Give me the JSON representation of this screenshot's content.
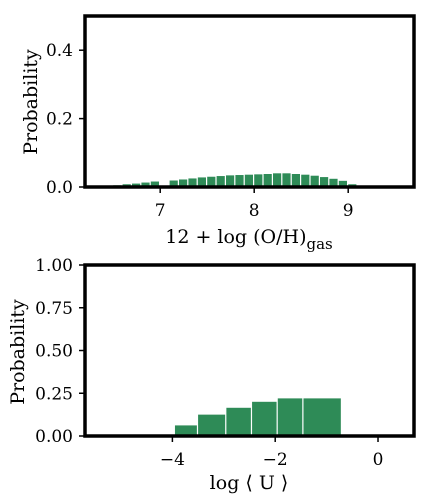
{
  "chart_data": [
    {
      "type": "bar",
      "panel": "top",
      "xlabel": "12 + log (O/H)",
      "xlabel_sub": "gas",
      "ylabel": "Probability",
      "xlim": [
        6.2,
        9.7
      ],
      "ylim": [
        0.0,
        0.5
      ],
      "xticks": [
        7,
        8,
        9
      ],
      "yticks": [
        0.0,
        0.2,
        0.4
      ],
      "ytick_labels": [
        "0.0",
        "0.2",
        "0.4"
      ],
      "bin_edges": [
        6.5,
        6.6,
        6.7,
        6.8,
        6.9,
        7.0,
        7.1,
        7.2,
        7.3,
        7.4,
        7.5,
        7.6,
        7.7,
        7.8,
        7.9,
        8.0,
        8.1,
        8.2,
        8.3,
        8.4,
        8.5,
        8.6,
        8.7,
        8.8,
        8.9,
        9.0,
        9.1
      ],
      "values": [
        0.005,
        0.008,
        0.01,
        0.013,
        0.016,
        0.0,
        0.019,
        0.022,
        0.025,
        0.028,
        0.03,
        0.032,
        0.034,
        0.035,
        0.036,
        0.037,
        0.038,
        0.04,
        0.04,
        0.038,
        0.036,
        0.033,
        0.029,
        0.024,
        0.018,
        0.008
      ],
      "bar_color": "#2e8b57"
    },
    {
      "type": "bar",
      "panel": "bottom",
      "xlabel": "log ⟨ U ⟩",
      "ylabel": "Probability",
      "xlim": [
        -5.7,
        0.7
      ],
      "ylim": [
        0.0,
        1.0
      ],
      "xticks": [
        -4,
        -2,
        0
      ],
      "xtick_labels": [
        "−4",
        "−2",
        "0"
      ],
      "yticks": [
        0.0,
        0.25,
        0.5,
        0.75,
        1.0
      ],
      "ytick_labels": [
        "0.00",
        "0.25",
        "0.50",
        "0.75",
        "1.00"
      ],
      "bin_edges": [
        -3.95,
        -3.5,
        -2.95,
        -2.45,
        -1.95,
        -1.45,
        -0.7
      ],
      "values": [
        0.062,
        0.125,
        0.165,
        0.2,
        0.22,
        0.22
      ],
      "bar_color": "#2e8b57"
    }
  ]
}
